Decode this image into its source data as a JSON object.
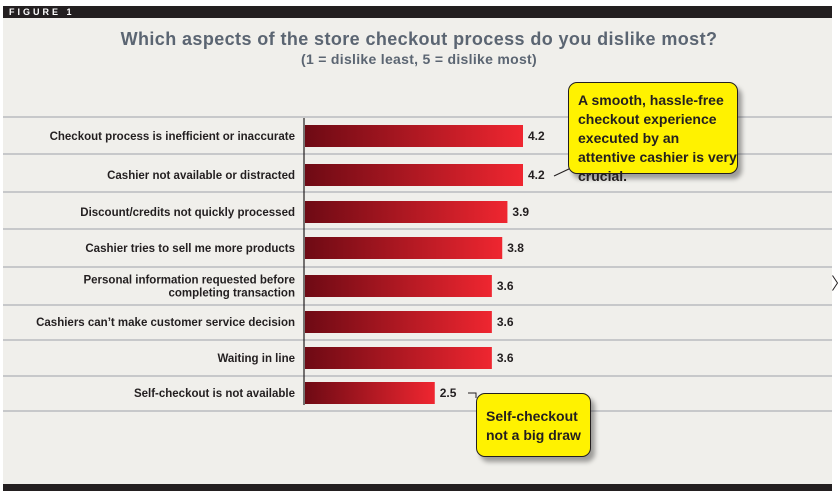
{
  "figure_label": "FIGURE 1",
  "title": "Which aspects of the store checkout process do you dislike most?",
  "subtitle": "(1 = dislike least, 5 = dislike most)",
  "colors": {
    "bar_dark": "#6e0a14",
    "bar_light": "#ef2630",
    "callout": "#fff200",
    "title": "#5b6572"
  },
  "callouts": [
    {
      "text": "A smooth, hassle-free checkout experience executed by an attentive cashier is very crucial."
    },
    {
      "text": "Self-checkout not a big draw"
    }
  ],
  "chart_data": {
    "type": "bar",
    "orientation": "horizontal",
    "title": "Which aspects of the store checkout process do you dislike most?",
    "subtitle": "(1 = dislike least, 5 = dislike most)",
    "categories": [
      "Checkout process is inefficient or inaccurate",
      "Cashier not available or distracted",
      "Discount/credits not quickly processed",
      "Cashier tries to sell me more products",
      "Personal information requested before completing transaction",
      "Cashiers can't make customer service decision",
      "Waiting in line",
      "Self-checkout is not available"
    ],
    "category_lines": [
      [
        "Checkout process is inefficient or inaccurate"
      ],
      [
        "Cashier not available or distracted"
      ],
      [
        "Discount/credits not quickly processed"
      ],
      [
        "Cashier tries to sell me more products"
      ],
      [
        "Personal information requested before",
        "completing transaction"
      ],
      [
        "Cashiers can’t make customer service decision"
      ],
      [
        "Waiting in line"
      ],
      [
        "Self-checkout is not available"
      ]
    ],
    "values": [
      4.2,
      4.2,
      3.9,
      3.8,
      3.6,
      3.6,
      3.6,
      2.5
    ],
    "value_labels": [
      "4.2",
      "4.2",
      "3.9",
      "3.8",
      "3.6",
      "3.6",
      "3.6",
      "2.5"
    ],
    "xlim": [
      0,
      4.2
    ],
    "grid": false,
    "legend": "none"
  }
}
